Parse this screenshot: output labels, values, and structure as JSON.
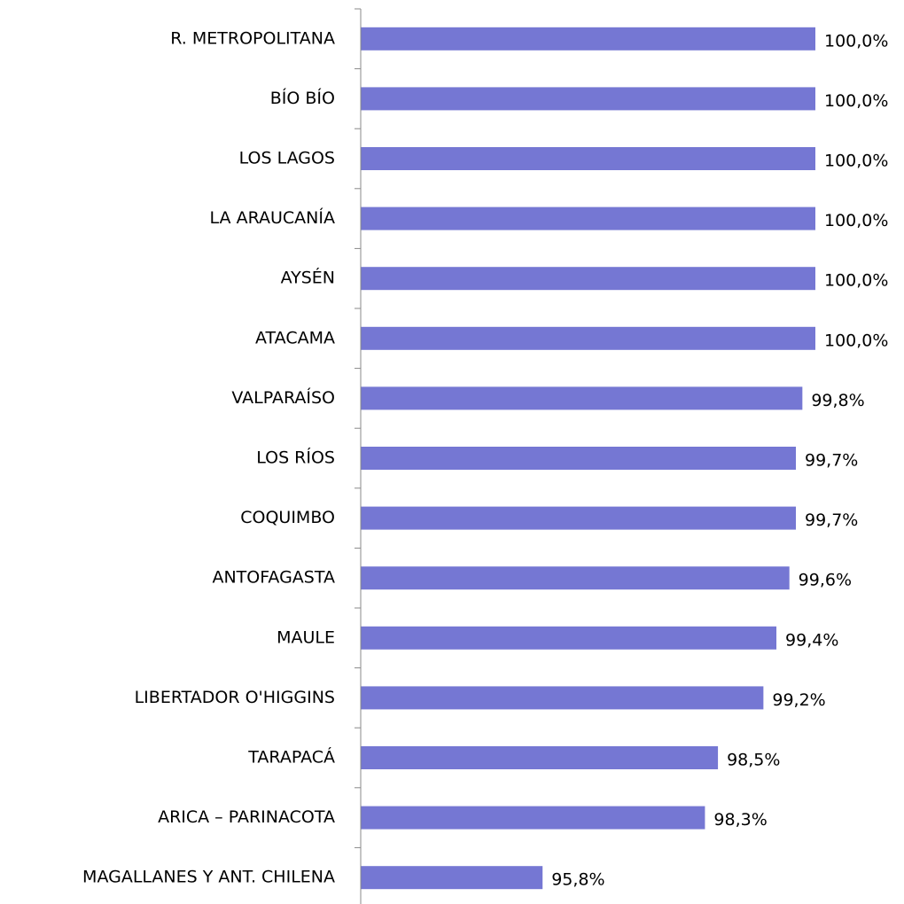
{
  "chart_data": {
    "type": "hbar",
    "categories": [
      "R. METROPOLITANA",
      "BÍO BÍO",
      "LOS LAGOS",
      "LA ARAUCANÍA",
      "AYSÉN",
      "ATACAMA",
      "VALPARAÍSO",
      "LOS RÍOS",
      "COQUIMBO",
      "ANTOFAGASTA",
      "MAULE",
      "LIBERTADOR O'HIGGINS",
      "TARAPACÁ",
      "ARICA – PARINACOTA",
      "MAGALLANES Y ANT. CHILENA"
    ],
    "values": [
      100.0,
      100.0,
      100.0,
      100.0,
      100.0,
      100.0,
      99.8,
      99.7,
      99.7,
      99.6,
      99.4,
      99.2,
      98.5,
      98.3,
      95.8
    ],
    "value_labels": [
      "100,0%",
      "100,0%",
      "100,0%",
      "100,0%",
      "100,0%",
      "100,0%",
      "99,8%",
      "99,7%",
      "99,7%",
      "99,6%",
      "99,4%",
      "99,2%",
      "98,5%",
      "98,3%",
      "95,8%"
    ],
    "color": "#7577d3",
    "xlim": [
      93,
      100
    ]
  }
}
